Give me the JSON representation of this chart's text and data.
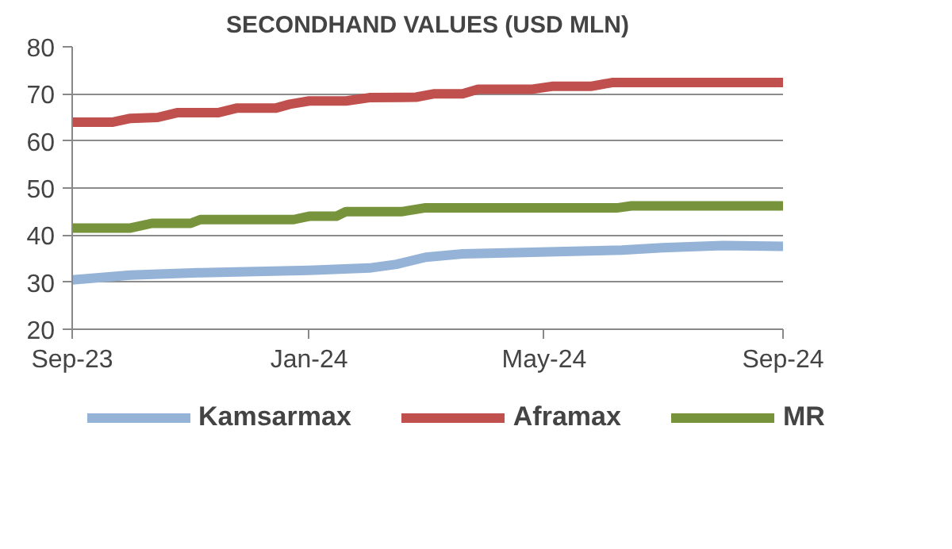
{
  "chart_data": {
    "type": "line",
    "title": "SECONDHAND VALUES (USD MLN)",
    "x": [
      "2023-09-01",
      "2023-09-22",
      "2023-10-01",
      "2023-10-15",
      "2023-10-25",
      "2023-11-15",
      "2023-11-25",
      "2023-12-15",
      "2023-12-22",
      "2024-01-01",
      "2024-01-20",
      "2024-02-01",
      "2024-02-25",
      "2024-03-05",
      "2024-03-20",
      "2024-03-28",
      "2024-04-25",
      "2024-05-05",
      "2024-05-25",
      "2024-06-05",
      "2024-07-01",
      "2024-08-01",
      "2024-09-01"
    ],
    "series": [
      {
        "name": "Kamsarmax",
        "color": "#95b3d7",
        "x": [
          "2023-09-01",
          "2023-10-01",
          "2023-11-05",
          "2024-01-01",
          "2024-02-01",
          "2024-02-15",
          "2024-03-01",
          "2024-03-20",
          "2024-04-20",
          "2024-06-10",
          "2024-07-01",
          "2024-08-01",
          "2024-09-01"
        ],
        "values": [
          30.5,
          31.5,
          32,
          32.5,
          33,
          33.8,
          35.3,
          36,
          36.3,
          36.8,
          37.3,
          37.8,
          37.6
        ]
      },
      {
        "name": "Aframax",
        "color": "#c0504d",
        "values": [
          64,
          64,
          64.8,
          65,
          66,
          66,
          67,
          67,
          67.8,
          68.5,
          68.5,
          69.2,
          69.3,
          70,
          70,
          71,
          71,
          71.6,
          71.6,
          72.4,
          72.4,
          72.4,
          72.4
        ]
      },
      {
        "name": "MR",
        "color": "#77933c",
        "x": [
          "2023-09-01",
          "2023-10-01",
          "2023-10-12",
          "2023-11-01",
          "2023-11-06",
          "2023-12-24",
          "2024-01-01",
          "2024-01-15",
          "2024-01-20",
          "2024-02-18",
          "2024-03-01",
          "2024-06-08",
          "2024-06-15",
          "2024-09-01"
        ],
        "values": [
          41.5,
          41.5,
          42.5,
          42.5,
          43.3,
          43.3,
          44,
          44,
          45,
          45,
          45.8,
          45.8,
          46.2,
          46.2
        ]
      }
    ],
    "xlim": [
      "2023-09-01",
      "2024-09-01"
    ],
    "xticks": [
      {
        "value": "2023-09-01",
        "label": "Sep-23"
      },
      {
        "value": "2024-01-01",
        "label": "Jan-24"
      },
      {
        "value": "2024-05-01",
        "label": "May-24"
      },
      {
        "value": "2024-09-01",
        "label": "Sep-24"
      }
    ],
    "ylim": [
      20,
      80
    ],
    "yticks": [
      20,
      30,
      40,
      50,
      60,
      70,
      80
    ],
    "grid": "y",
    "legend": "bottom",
    "line_style": "solid",
    "marker": "none"
  }
}
